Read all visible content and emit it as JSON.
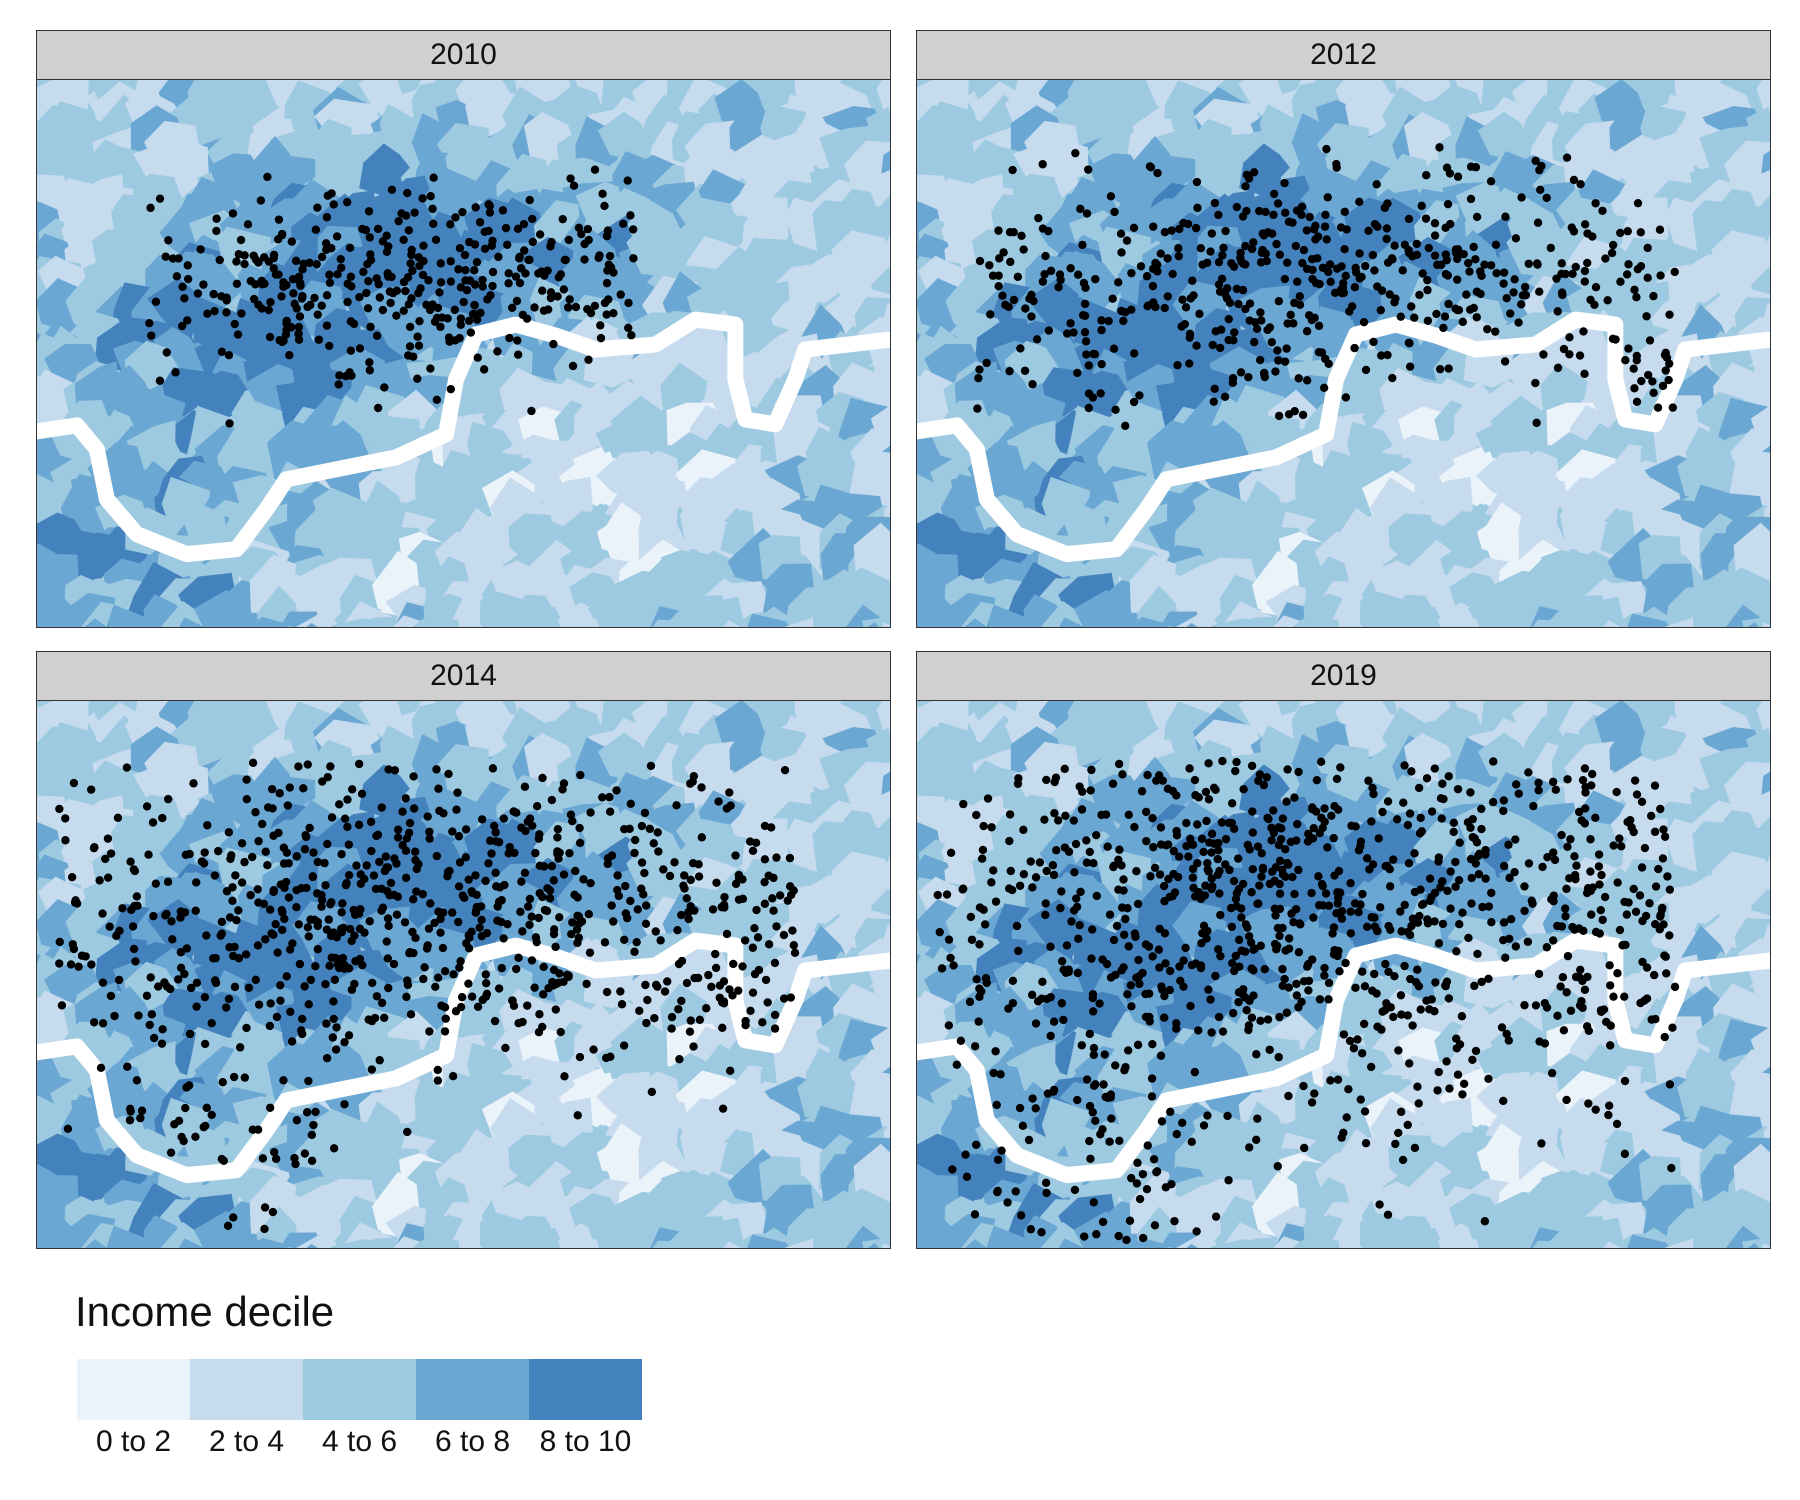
{
  "panels": [
    {
      "title": "2010",
      "seed": 11,
      "density": 0.55,
      "extent": 0
    },
    {
      "title": "2012",
      "seed": 23,
      "density": 0.75,
      "extent": 1
    },
    {
      "title": "2014",
      "seed": 37,
      "density": 1.15,
      "extent": 2
    },
    {
      "title": "2019",
      "seed": 53,
      "density": 1.4,
      "extent": 3
    }
  ],
  "legend": {
    "title": "Income decile",
    "items": [
      {
        "label": "0 to 2",
        "color": "#eaf2fa"
      },
      {
        "label": "2 to 4",
        "color": "#c6dbee"
      },
      {
        "label": "4 to 6",
        "color": "#9ecae1"
      },
      {
        "label": "6 to 8",
        "color": "#6aa7d3"
      },
      {
        "label": "8 to 10",
        "color": "#4482be"
      }
    ]
  },
  "colors": {
    "river": "#ffffff",
    "points": "#000000"
  }
}
